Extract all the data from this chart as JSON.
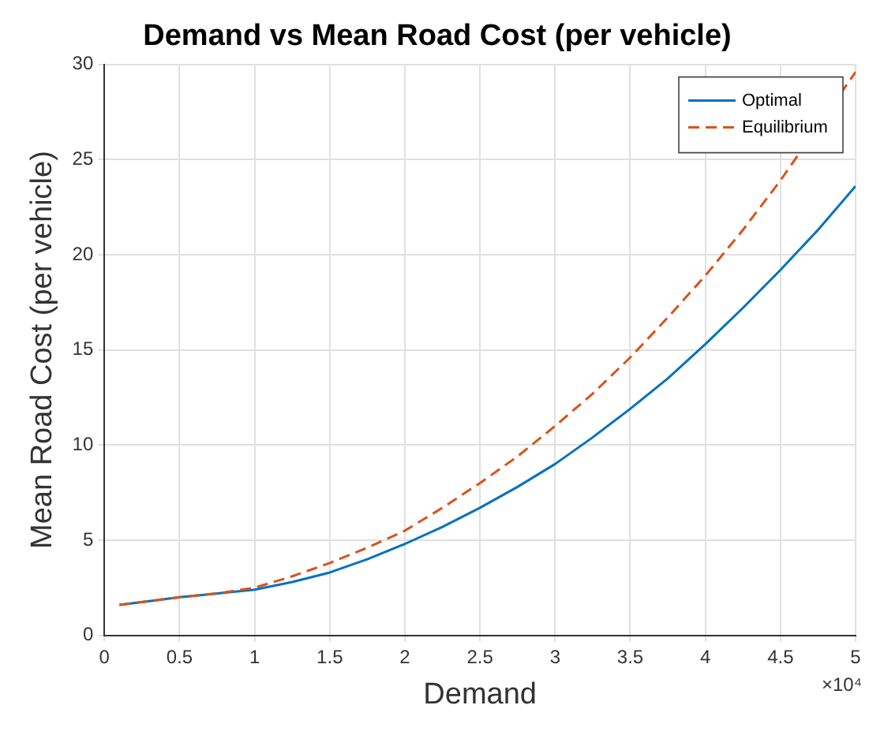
{
  "chart_data": {
    "type": "line",
    "title": "Demand vs Mean Road Cost (per vehicle)",
    "xlabel": "Demand",
    "ylabel": "Mean Road Cost (per vehicle)",
    "annotations": [
      "×10⁴"
    ],
    "x": [
      0.1,
      0.3,
      0.5,
      0.75,
      1,
      1.25,
      1.5,
      1.75,
      2,
      2.25,
      2.5,
      2.75,
      3,
      3.25,
      3.5,
      3.75,
      4,
      4.25,
      4.5,
      4.75,
      5
    ],
    "series": [
      {
        "name": "Optimal",
        "color": "#0072bd",
        "line_style": "solid",
        "values": [
          1.6,
          1.8,
          2.0,
          2.2,
          2.4,
          2.8,
          3.3,
          4.0,
          4.8,
          5.7,
          6.7,
          7.8,
          9.0,
          10.4,
          11.9,
          13.5,
          15.3,
          17.2,
          19.2,
          21.3,
          23.6
        ]
      },
      {
        "name": "Equilibrium",
        "color": "#d95319",
        "line_style": "dashed",
        "values": [
          1.6,
          1.8,
          2.0,
          2.2,
          2.5,
          3.1,
          3.8,
          4.6,
          5.5,
          6.7,
          8.0,
          9.4,
          11.0,
          12.7,
          14.6,
          16.7,
          18.9,
          21.3,
          23.9,
          null,
          29.6
        ]
      }
    ],
    "xlim": [
      0,
      5
    ],
    "xticks": [
      0,
      0.5,
      1,
      1.5,
      2,
      2.5,
      3,
      3.5,
      4,
      4.5,
      5
    ],
    "ylim": [
      0,
      30
    ],
    "yticks": [
      0,
      5,
      10,
      15,
      20,
      25,
      30
    ],
    "grid": true,
    "legend": "top right",
    "marker": "none"
  }
}
